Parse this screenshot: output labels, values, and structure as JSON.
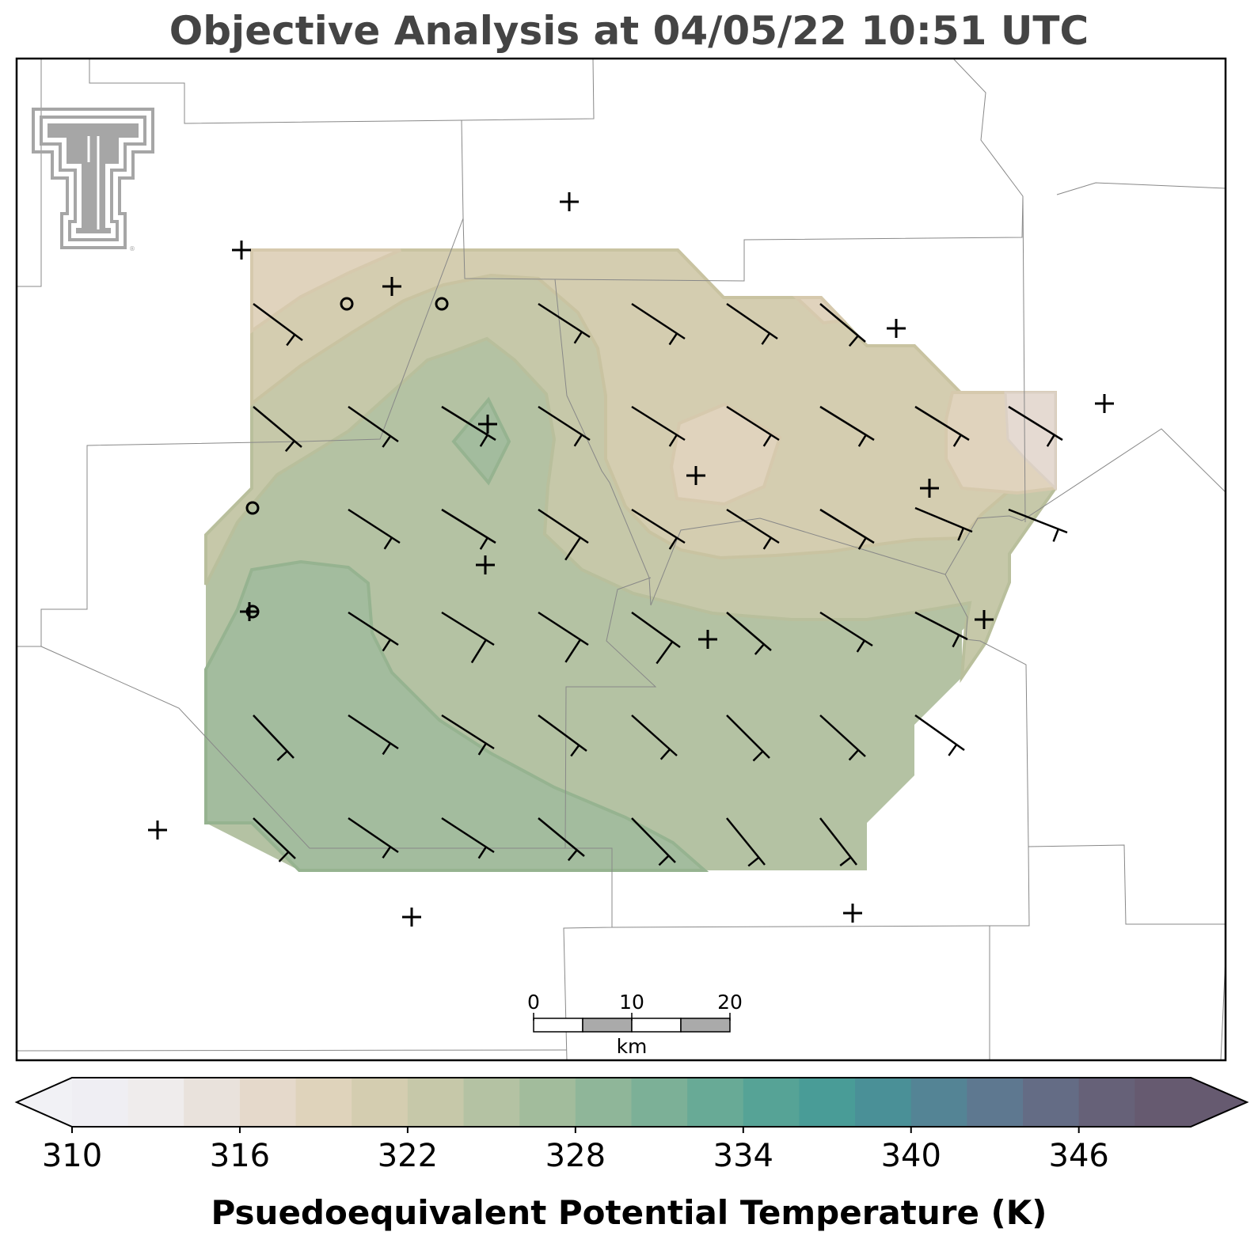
{
  "title": "Objective Analysis at 04/05/22 10:51 UTC",
  "colorbar": {
    "label": "Psuedoequivalent Potential Temperature (K)",
    "ticks": [
      "310",
      "316",
      "322",
      "328",
      "334",
      "340",
      "346"
    ],
    "min": 310,
    "max": 350,
    "step": 2,
    "colors": [
      "#efeef3",
      "#efecec",
      "#e9e2dc",
      "#e5d9cb",
      "#dfd3bb",
      "#d4cdb0",
      "#c6c8a9",
      "#b4c2a3",
      "#a2bc9c",
      "#8fb699",
      "#7cb097",
      "#68aa96",
      "#56a396",
      "#499c97",
      "#4a9097",
      "#548495",
      "#5e7890",
      "#646c85",
      "#666178",
      "#665a70"
    ],
    "under_color": "#f1f1f5",
    "over_color": "#665a70"
  },
  "scale_bar": {
    "labels": [
      "0",
      "10",
      "20"
    ],
    "unit": "km"
  },
  "logo": {
    "name": "Texas Tech double-T logo",
    "color": "#a6a6a6"
  }
}
